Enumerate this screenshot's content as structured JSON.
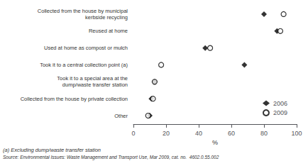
{
  "chart_data": {
    "type": "dot",
    "orientation": "horizontal",
    "categories": [
      "Collected from the house by municipal\nkerbside recycling",
      "Reused at home",
      "Used at home as compost or mulch",
      "Took it to a central collection point (a)",
      "Took it to a special area at the\ndump/waste transfer station",
      "Collected from the house by private collection",
      "Other"
    ],
    "series": [
      {
        "name": "2006",
        "color": "#000000",
        "marker": "diamond",
        "values": [
          80,
          88,
          44,
          68,
          13,
          11,
          10
        ]
      },
      {
        "name": "2009",
        "color": "#000000",
        "marker": "open circle",
        "values": [
          92,
          90,
          47,
          17,
          13,
          12,
          9
        ]
      }
    ],
    "x_label": "%",
    "xlim": [
      0,
      100
    ],
    "xticks": [
      0,
      20,
      40,
      60,
      80,
      100
    ],
    "grid": false,
    "legend": "lower right",
    "annotations": [
      "(a) Excluding dump/waste transfer station",
      "Source: Environmental Issues: Waste Management and Transport Use, Mar 2009, cat. no.  4602.0.55.002"
    ]
  }
}
